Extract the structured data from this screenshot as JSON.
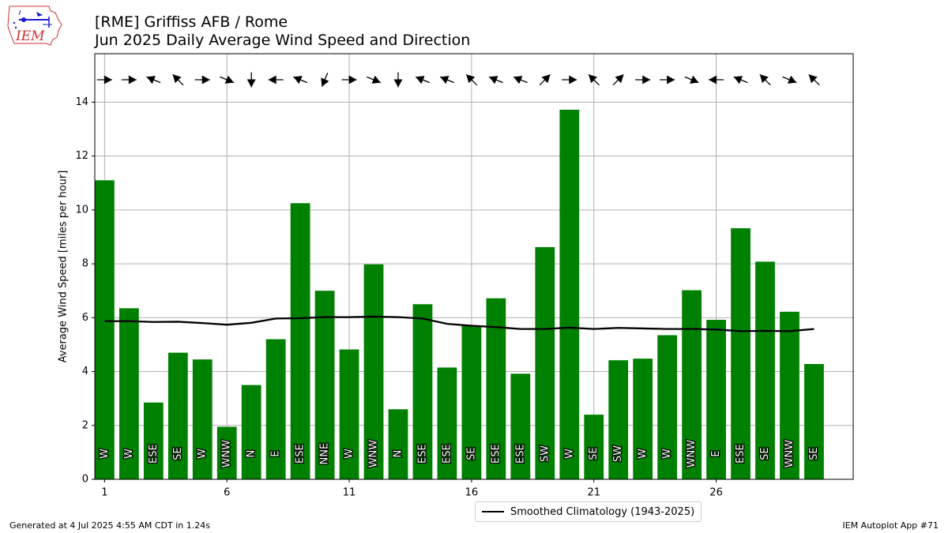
{
  "header": {
    "title_line1": "[RME] Griffiss AFB / Rome",
    "title_line2": "Jun 2025 Daily Average Wind Speed and Direction",
    "logo_text": "IEM"
  },
  "footer": {
    "left": "Generated at 4 Jul 2025 4:55 AM CDT in 1.24s",
    "right": "IEM Autoplot App #71"
  },
  "colors": {
    "bar": "#008000",
    "climatology_line": "#000000",
    "grid": "#b0b0b0",
    "logo_red": "#cc3333",
    "logo_blue": "#1a1acc"
  },
  "chart_data": {
    "type": "bar",
    "title": "Jun 2025 Daily Average Wind Speed and Direction",
    "ylabel": "Average Wind Speed [miles per hour]",
    "xlabel": "",
    "xlim": [
      0.6,
      31.6
    ],
    "ylim": [
      0,
      15.8
    ],
    "xticks": [
      1,
      6,
      11,
      16,
      21,
      26
    ],
    "yticks": [
      0,
      2,
      4,
      6,
      8,
      10,
      12,
      14
    ],
    "grid": true,
    "legend_position": "bottom-center",
    "days": [
      1,
      2,
      3,
      4,
      5,
      6,
      7,
      8,
      9,
      10,
      11,
      12,
      13,
      14,
      15,
      16,
      17,
      18,
      19,
      20,
      21,
      22,
      23,
      24,
      25,
      26,
      27,
      28,
      29,
      30
    ],
    "speed": [
      11.1,
      6.35,
      2.85,
      4.7,
      4.45,
      1.95,
      3.5,
      5.2,
      10.25,
      7.0,
      4.82,
      7.98,
      2.6,
      6.5,
      4.15,
      5.72,
      6.72,
      3.92,
      8.62,
      13.72,
      2.4,
      4.42,
      4.48,
      5.35,
      7.02,
      5.92,
      9.32,
      8.08,
      6.22,
      4.28
    ],
    "direction_labels": [
      "W",
      "W",
      "ESE",
      "SE",
      "W",
      "WNW",
      "N",
      "E",
      "ESE",
      "NNE",
      "W",
      "WNW",
      "N",
      "ESE",
      "ESE",
      "SE",
      "ESE",
      "ESE",
      "SW",
      "W",
      "SE",
      "SW",
      "W",
      "W",
      "WNW",
      "E",
      "ESE",
      "SE",
      "WNW",
      "SE"
    ],
    "arrow_directions_deg": [
      270,
      270,
      112.5,
      135,
      270,
      292.5,
      0,
      90,
      112.5,
      22.5,
      270,
      292.5,
      0,
      112.5,
      112.5,
      135,
      112.5,
      112.5,
      225,
      270,
      135,
      225,
      270,
      270,
      292.5,
      90,
      112.5,
      135,
      292.5,
      135
    ],
    "series": [
      {
        "name": "Smoothed Climatology (1943-2025)",
        "type": "line",
        "values": [
          5.87,
          5.87,
          5.84,
          5.85,
          5.8,
          5.74,
          5.81,
          5.97,
          5.98,
          6.02,
          6.02,
          6.04,
          6.02,
          5.97,
          5.77,
          5.7,
          5.65,
          5.58,
          5.58,
          5.63,
          5.58,
          5.62,
          5.6,
          5.58,
          5.58,
          5.56,
          5.5,
          5.51,
          5.5,
          5.58
        ]
      }
    ]
  }
}
